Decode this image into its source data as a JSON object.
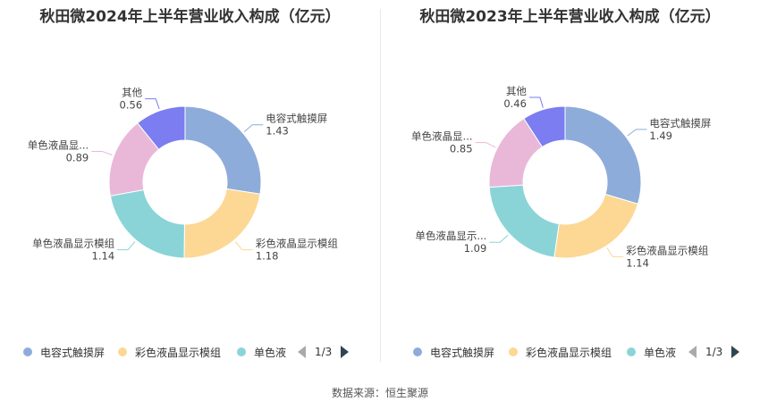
{
  "legend": {
    "items": [
      "电容式触摸屏",
      "彩色液晶显示模组",
      "单色液"
    ],
    "page": "1/3"
  },
  "source": "数据来源：恒生聚源",
  "chart_data": [
    {
      "type": "pie",
      "title": "秋田微2024年上半年营业收入构成（亿元）",
      "slices": [
        {
          "name": "电容式触摸屏",
          "label": "电容式触摸屏",
          "value": 1.43,
          "color": "#8eacda"
        },
        {
          "name": "彩色液晶显示模组",
          "label": "彩色液晶显示模组",
          "value": 1.18,
          "color": "#fdd794"
        },
        {
          "name": "单色液晶显示模组",
          "label": "单色液晶显示模组",
          "value": 1.14,
          "color": "#8ad4d8"
        },
        {
          "name": "单色液晶显示屏",
          "label": "单色液晶显...",
          "value": 0.89,
          "color": "#e9b8d8"
        },
        {
          "name": "其他",
          "label": "其他",
          "value": 0.56,
          "color": "#7b7df0"
        }
      ]
    },
    {
      "type": "pie",
      "title": "秋田微2023年上半年营业收入构成（亿元）",
      "slices": [
        {
          "name": "电容式触摸屏",
          "label": "电容式触摸屏",
          "value": 1.49,
          "color": "#8eacda"
        },
        {
          "name": "彩色液晶显示模组",
          "label": "彩色液晶显示模组",
          "value": 1.14,
          "color": "#fdd794"
        },
        {
          "name": "单色液晶显示模组",
          "label": "单色液晶显示...",
          "value": 1.09,
          "color": "#8ad4d8"
        },
        {
          "name": "单色液晶显示屏",
          "label": "单色液晶显...",
          "value": 0.85,
          "color": "#e9b8d8"
        },
        {
          "name": "其他",
          "label": "其他",
          "value": 0.46,
          "color": "#7b7df0"
        }
      ]
    }
  ]
}
